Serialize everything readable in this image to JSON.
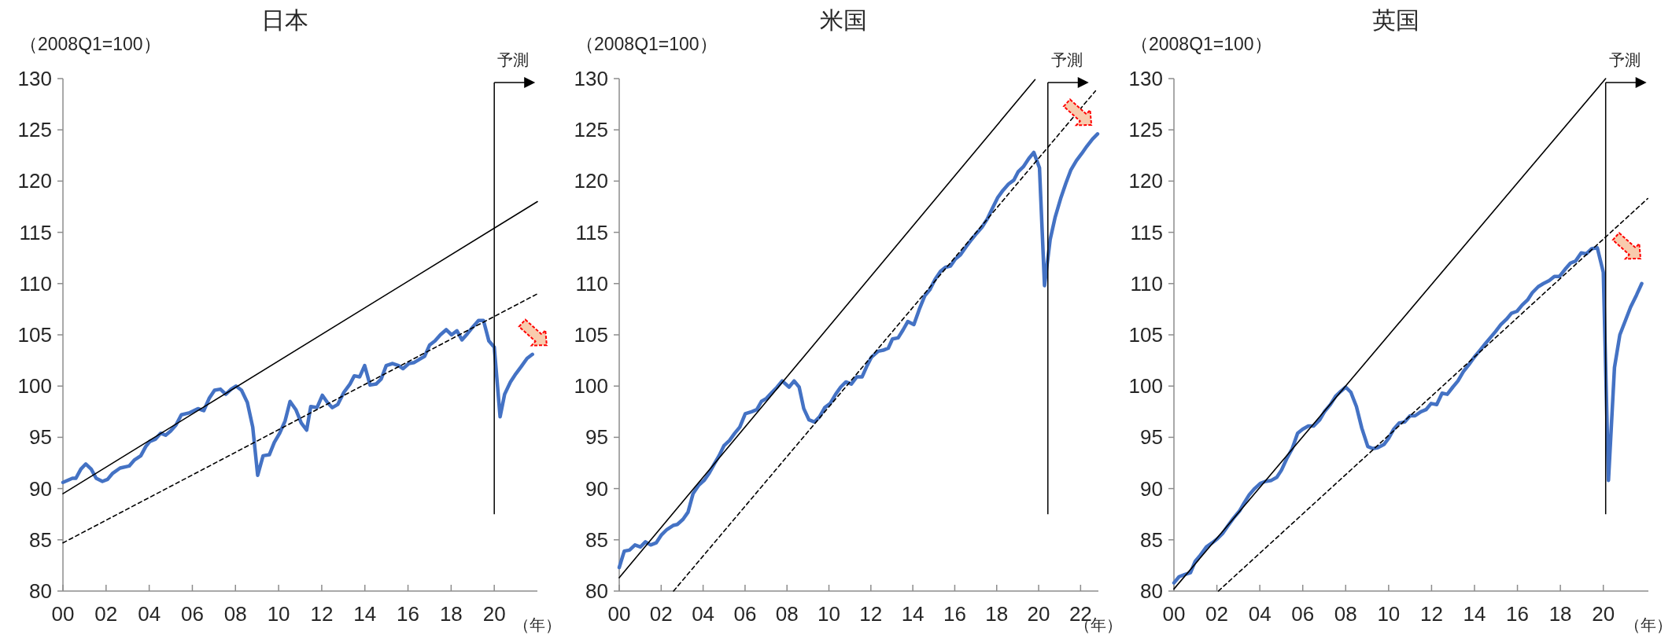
{
  "chart_data": [
    {
      "type": "line",
      "title": "日本",
      "ylabel": "（2008Q1=100）",
      "xlabel": "（年）",
      "xlim": [
        2000,
        2022
      ],
      "xticks": [
        {
          "value": 2000,
          "label": "00"
        },
        {
          "value": 2002,
          "label": "02"
        },
        {
          "value": 2004,
          "label": "04"
        },
        {
          "value": 2006,
          "label": "06"
        },
        {
          "value": 2008,
          "label": "08"
        },
        {
          "value": 2010,
          "label": "10"
        },
        {
          "value": 2012,
          "label": "12"
        },
        {
          "value": 2014,
          "label": "14"
        },
        {
          "value": 2016,
          "label": "16"
        },
        {
          "value": 2018,
          "label": "18"
        },
        {
          "value": 2020,
          "label": "20"
        }
      ],
      "ylim": [
        80,
        130
      ],
      "yticks": [
        80,
        85,
        90,
        95,
        100,
        105,
        110,
        115,
        120,
        125,
        130
      ],
      "series": [
        {
          "color": "#4472c4",
          "x": [
            2000,
            2000.44,
            2000.6,
            2000.83,
            2001.06,
            2001.31,
            2001.54,
            2001.83,
            2002.07,
            2002.31,
            2002.65,
            2003.07,
            2003.32,
            2003.61,
            2003.84,
            2004.03,
            2004.28,
            2004.53,
            2004.76,
            2004.99,
            2005.24,
            2005.49,
            2005.88,
            2006.26,
            2006.53,
            2006.78,
            2007.03,
            2007.3,
            2007.55,
            2007.8,
            2008.03,
            2008.28,
            2008.55,
            2008.8,
            2009.03,
            2009.28,
            2009.57,
            2009.8,
            2010.05,
            2010.3,
            2010.53,
            2010.8,
            2011.05,
            2011.3,
            2011.49,
            2011.78,
            2012.03,
            2012.26,
            2012.49,
            2012.74,
            2013.03,
            2013.31,
            2013.51,
            2013.76,
            2013.99,
            2014.24,
            2014.52,
            2014.76,
            2014.99,
            2015.29,
            2015.56,
            2015.77,
            2016.04,
            2016.29,
            2016.52,
            2016.77,
            2017.0,
            2017.25,
            2017.5,
            2017.77,
            2018.02,
            2018.27,
            2018.5,
            2018.75,
            2018.98,
            2019.27,
            2019.5,
            2019.75,
            2020.0,
            2020.27,
            2020.48,
            2020.75,
            2021.0,
            2021.25,
            2021.52,
            2021.77
          ],
          "values": [
            90.6,
            91.0,
            91.0,
            91.9,
            92.4,
            91.9,
            91.0,
            90.7,
            90.9,
            91.5,
            92.0,
            92.2,
            92.8,
            93.2,
            94.1,
            94.6,
            94.8,
            95.4,
            95.2,
            95.6,
            96.2,
            97.2,
            97.4,
            97.8,
            97.6,
            98.8,
            99.6,
            99.7,
            99.2,
            99.7,
            100.0,
            99.6,
            98.4,
            96.0,
            91.3,
            93.2,
            93.3,
            94.5,
            95.4,
            96.6,
            98.5,
            97.7,
            96.4,
            95.7,
            98.0,
            97.9,
            99.1,
            98.4,
            97.9,
            98.2,
            99.4,
            100.2,
            101.0,
            100.9,
            102.0,
            100.1,
            100.2,
            100.7,
            102.0,
            102.2,
            102.0,
            101.7,
            102.2,
            102.3,
            102.6,
            102.9,
            104.0,
            104.4,
            105.0,
            105.5,
            105.0,
            105.4,
            104.5,
            105.1,
            105.7,
            106.4,
            106.4,
            104.4,
            103.8,
            97.0,
            99.2,
            100.4,
            101.2,
            101.9,
            102.7,
            103.1
          ]
        },
        {
          "type": "line",
          "color": "#000000",
          "line_style": "solid",
          "x": [
            2000,
            2022
          ],
          "values": [
            89.5,
            118.0
          ]
        },
        {
          "type": "line",
          "color": "#000000",
          "line_style": "dashed",
          "x": [
            2000,
            2022
          ],
          "values": [
            84.7,
            109.0
          ]
        }
      ],
      "ref_lines": [
        {
          "axis": "x",
          "value": 2020.0,
          "label": "予測"
        }
      ],
      "grid": false
    },
    {
      "type": "line",
      "title": "米国",
      "ylabel": "（2008Q1=100）",
      "xlabel": "（年）",
      "xlim": [
        2000,
        2022.85
      ],
      "xticks": [
        {
          "value": 2000,
          "label": "00"
        },
        {
          "value": 2002,
          "label": "02"
        },
        {
          "value": 2004,
          "label": "04"
        },
        {
          "value": 2006,
          "label": "06"
        },
        {
          "value": 2008,
          "label": "08"
        },
        {
          "value": 2010,
          "label": "10"
        },
        {
          "value": 2012,
          "label": "12"
        },
        {
          "value": 2014,
          "label": "14"
        },
        {
          "value": 2016,
          "label": "16"
        },
        {
          "value": 2018,
          "label": "18"
        },
        {
          "value": 2020,
          "label": "20"
        },
        {
          "value": 2022,
          "label": "22"
        }
      ],
      "ylim": [
        80,
        130
      ],
      "yticks": [
        80,
        85,
        90,
        95,
        100,
        105,
        110,
        115,
        120,
        125,
        130
      ],
      "series": [
        {
          "color": "#4472c4",
          "x": [
            2000,
            2000.24,
            2000.49,
            2000.75,
            2001.01,
            2001.25,
            2001.5,
            2001.76,
            2002.02,
            2002.27,
            2002.57,
            2002.77,
            2003.04,
            2003.28,
            2003.52,
            2003.78,
            2004.05,
            2004.29,
            2004.53,
            2004.76,
            2005.0,
            2005.26,
            2005.51,
            2005.75,
            2006.01,
            2006.31,
            2006.56,
            2006.78,
            2007.02,
            2007.29,
            2007.53,
            2007.77,
            2008.1,
            2008.34,
            2008.58,
            2008.8,
            2009.05,
            2009.31,
            2009.55,
            2009.8,
            2010.06,
            2010.32,
            2010.56,
            2010.81,
            2011.07,
            2011.33,
            2011.58,
            2011.82,
            2012.02,
            2012.35,
            2012.59,
            2012.83,
            2013.03,
            2013.3,
            2013.54,
            2013.76,
            2014.05,
            2014.31,
            2014.57,
            2014.81,
            2015.06,
            2015.32,
            2015.56,
            2015.79,
            2016.03,
            2016.27,
            2016.54,
            2016.8,
            2017.04,
            2017.3,
            2017.55,
            2017.81,
            2018.05,
            2018.3,
            2018.56,
            2018.82,
            2019.02,
            2019.27,
            2019.53,
            2019.77,
            2020.04,
            2020.28,
            2020.55,
            2020.79,
            2021.05,
            2021.3,
            2021.54,
            2021.8,
            2022.06,
            2022.3,
            2022.57,
            2022.81
          ],
          "values": [
            82.3,
            83.9,
            84.0,
            84.5,
            84.3,
            84.8,
            84.5,
            84.7,
            85.5,
            86.0,
            86.4,
            86.5,
            87.0,
            87.7,
            89.5,
            90.3,
            90.8,
            91.5,
            92.4,
            93.2,
            94.2,
            94.7,
            95.4,
            96.0,
            97.3,
            97.5,
            97.7,
            98.5,
            98.8,
            99.4,
            99.9,
            100.5,
            99.9,
            100.5,
            99.9,
            97.8,
            96.7,
            96.5,
            97.0,
            97.9,
            98.3,
            99.2,
            99.9,
            100.4,
            100.2,
            100.9,
            100.9,
            102.0,
            102.8,
            103.4,
            103.5,
            103.7,
            104.6,
            104.7,
            105.5,
            106.3,
            106.0,
            107.5,
            108.8,
            109.4,
            110.4,
            111.2,
            111.6,
            111.7,
            112.4,
            112.8,
            113.6,
            114.3,
            114.9,
            115.5,
            116.3,
            117.4,
            118.4,
            119.1,
            119.7,
            120.1,
            120.9,
            121.4,
            122.2,
            122.8,
            121.3,
            109.8,
            114.3,
            116.5,
            118.3,
            119.8,
            121.1,
            122.0,
            122.7,
            123.4,
            124.1,
            124.6
          ]
        },
        {
          "type": "line",
          "color": "#000000",
          "line_style": "solid",
          "x": [
            2000,
            2019.83
          ],
          "values": [
            81.3,
            129.9
          ]
        },
        {
          "type": "line",
          "color": "#000000",
          "line_style": "dashed",
          "x": [
            2002.59,
            2022.71
          ],
          "values": [
            80.0,
            128.8
          ]
        }
      ],
      "ref_lines": [
        {
          "axis": "x",
          "value": 2020.44,
          "label": "予測"
        }
      ],
      "grid": false
    },
    {
      "type": "line",
      "title": "英国",
      "ylabel": "（2008Q1=100）",
      "xlabel": "（年）",
      "xlim": [
        2000,
        2022.1
      ],
      "xticks": [
        {
          "value": 2000,
          "label": "00"
        },
        {
          "value": 2002,
          "label": "02"
        },
        {
          "value": 2004,
          "label": "04"
        },
        {
          "value": 2006,
          "label": "06"
        },
        {
          "value": 2008,
          "label": "08"
        },
        {
          "value": 2010,
          "label": "10"
        },
        {
          "value": 2012,
          "label": "12"
        },
        {
          "value": 2014,
          "label": "14"
        },
        {
          "value": 2016,
          "label": "16"
        },
        {
          "value": 2018,
          "label": "18"
        },
        {
          "value": 2020,
          "label": "20"
        }
      ],
      "ylim": [
        80,
        130
      ],
      "yticks": [
        80,
        85,
        90,
        95,
        100,
        105,
        110,
        115,
        120,
        125,
        130
      ],
      "series": [
        {
          "color": "#4472c4",
          "x": [
            2000,
            2000.24,
            2000.49,
            2000.77,
            2000.99,
            2001.23,
            2001.51,
            2001.78,
            2002.02,
            2002.26,
            2002.49,
            2002.77,
            2003.05,
            2003.27,
            2003.51,
            2003.76,
            2004.02,
            2004.26,
            2004.54,
            2004.79,
            2005.01,
            2005.25,
            2005.51,
            2005.76,
            2006.0,
            2006.26,
            2006.5,
            2006.79,
            2007.01,
            2007.29,
            2007.53,
            2007.78,
            2008.0,
            2008.24,
            2008.5,
            2008.75,
            2009.03,
            2009.27,
            2009.5,
            2009.78,
            2010.0,
            2010.24,
            2010.49,
            2010.75,
            2011.0,
            2011.23,
            2011.5,
            2011.74,
            2011.98,
            2012.24,
            2012.49,
            2012.73,
            2012.99,
            2013.23,
            2013.48,
            2013.74,
            2013.98,
            2014.22,
            2014.49,
            2014.73,
            2014.97,
            2015.23,
            2015.48,
            2015.72,
            2015.98,
            2016.22,
            2016.47,
            2016.69,
            2016.97,
            2017.21,
            2017.48,
            2017.72,
            2017.96,
            2018.22,
            2018.47,
            2018.71,
            2018.97,
            2019.21,
            2019.46,
            2019.72,
            2020.0,
            2020.24,
            2020.52,
            2020.77,
            2021.03,
            2021.27,
            2021.55,
            2021.79
          ],
          "values": [
            80.8,
            81.4,
            81.6,
            81.8,
            82.9,
            83.5,
            84.3,
            84.7,
            85.1,
            85.6,
            86.3,
            87.1,
            87.8,
            88.6,
            89.4,
            90.0,
            90.5,
            90.7,
            90.8,
            91.1,
            91.8,
            92.9,
            93.9,
            95.4,
            95.8,
            96.1,
            96.1,
            96.7,
            97.5,
            98.2,
            99.0,
            99.5,
            99.9,
            99.4,
            98.0,
            95.9,
            94.1,
            93.9,
            94.0,
            94.3,
            94.9,
            95.8,
            96.4,
            96.5,
            97.1,
            97.1,
            97.5,
            97.7,
            98.3,
            98.2,
            99.3,
            99.2,
            99.9,
            100.5,
            101.4,
            102.1,
            102.8,
            103.4,
            104.1,
            104.7,
            105.3,
            106.0,
            106.5,
            107.1,
            107.3,
            107.9,
            108.4,
            109.1,
            109.7,
            110.0,
            110.3,
            110.7,
            110.7,
            111.4,
            112.0,
            112.2,
            113.0,
            112.9,
            113.4,
            113.5,
            111.1,
            90.8,
            101.8,
            105.0,
            106.4,
            107.7,
            108.9,
            110.0
          ]
        },
        {
          "type": "line",
          "color": "#000000",
          "line_style": "solid",
          "x": [
            2000,
            2020.11
          ],
          "values": [
            80.2,
            130.0
          ]
        },
        {
          "type": "line",
          "color": "#000000",
          "line_style": "dashed",
          "x": [
            2002.07,
            2022.07
          ],
          "values": [
            80.0,
            118.3
          ]
        }
      ],
      "ref_lines": [
        {
          "axis": "x",
          "value": 2020.11,
          "label": "予測"
        }
      ],
      "grid": false
    }
  ]
}
